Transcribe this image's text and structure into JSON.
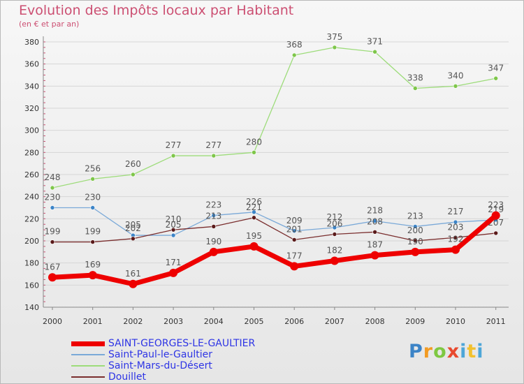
{
  "header": {
    "title": "Evolution des Impôts locaux par Habitant",
    "subtitle": "(en € et par an)"
  },
  "brand": {
    "letters": [
      "P",
      "r",
      "o",
      "x",
      "i",
      "t",
      "i"
    ]
  },
  "chart_data": {
    "type": "line",
    "title": "Evolution des Impôts locaux par Habitant",
    "ylabel": "(en € et par an)",
    "xlabel": "",
    "ylim": [
      140,
      380
    ],
    "yticks": [
      140,
      160,
      180,
      200,
      220,
      240,
      260,
      280,
      300,
      320,
      340,
      360,
      380
    ],
    "categories": [
      "2000",
      "2001",
      "2002",
      "2003",
      "2004",
      "2005",
      "2006",
      "2007",
      "2008",
      "2009",
      "2010",
      "2011"
    ],
    "legend_position": "bottom-left",
    "series": [
      {
        "name": "Saint-Mars-du-Désert",
        "color": "#9ddc7a",
        "marker": "#7ec64a",
        "width": 1.3,
        "values": [
          248,
          256,
          260,
          277,
          277,
          280,
          368,
          375,
          371,
          338,
          340,
          347
        ],
        "labels": [
          "248",
          "256",
          "260",
          "277",
          "277",
          "280",
          "368",
          "375",
          "371",
          "338",
          "340",
          "347"
        ]
      },
      {
        "name": "Saint-Paul-le-Gaultier",
        "color": "#7aa9d8",
        "marker": "#3c84c7",
        "width": 1.3,
        "values": [
          230,
          230,
          205,
          205,
          223,
          226,
          209,
          212,
          218,
          213,
          217,
          219
        ],
        "labels": [
          "230",
          "230",
          "205",
          "205",
          "223",
          "226",
          "209",
          "212",
          "218",
          "213",
          "217",
          "219"
        ]
      },
      {
        "name": "Douillet",
        "color": "#7a2e2e",
        "marker": "#5a1a1a",
        "width": 1.3,
        "values": [
          199,
          199,
          202,
          210,
          213,
          221,
          201,
          206,
          208,
          200,
          203,
          207
        ],
        "labels": [
          "199",
          "199",
          "202",
          "210",
          "213",
          "221",
          "201",
          "206",
          "208",
          "200",
          "203",
          "207"
        ]
      },
      {
        "name": "SAINT-GEORGES-LE-GAULTIER",
        "color": "#ee0000",
        "marker": "#ee0000",
        "width": 7,
        "values": [
          167,
          169,
          161,
          171,
          190,
          195,
          177,
          182,
          187,
          190,
          192,
          223
        ],
        "labels": [
          "167",
          "169",
          "161",
          "171",
          "190",
          "195",
          "177",
          "182",
          "187",
          "190",
          "192",
          "223"
        ]
      }
    ]
  },
  "legend": {
    "items": [
      {
        "label": "SAINT-GEORGES-LE-GAULTIER",
        "color": "#ee0000"
      },
      {
        "label": "Saint-Paul-le-Gaultier",
        "color": "#7aa9d8"
      },
      {
        "label": "Saint-Mars-du-Désert",
        "color": "#9ddc7a"
      },
      {
        "label": "Douillet",
        "color": "#7a2e2e"
      }
    ]
  }
}
